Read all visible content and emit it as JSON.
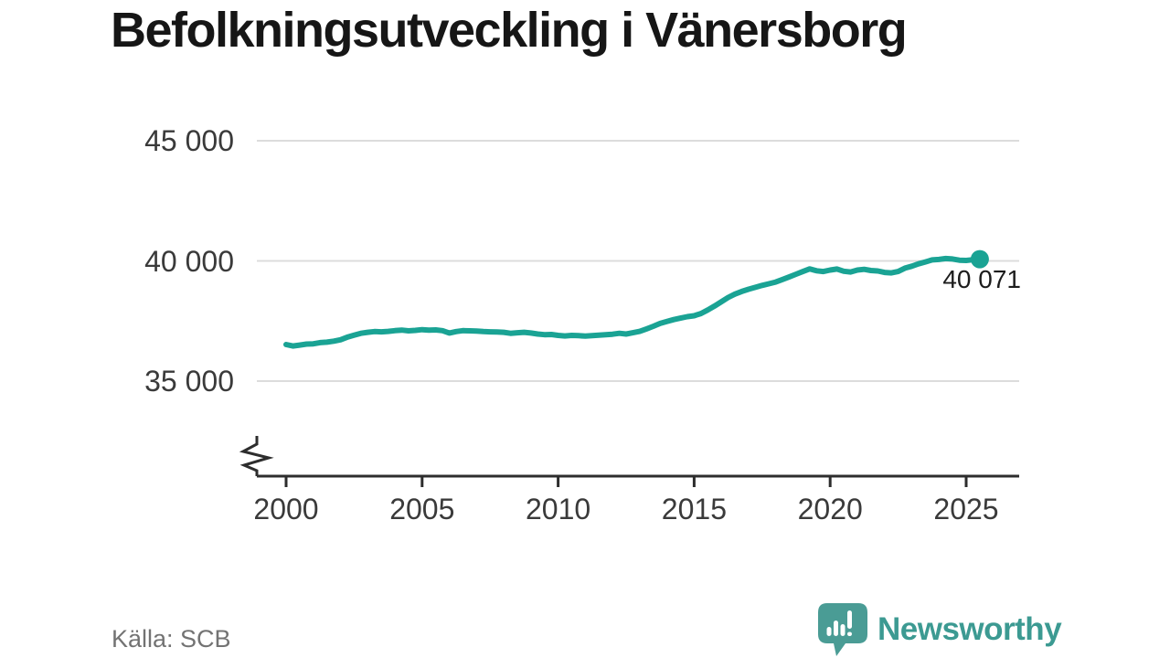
{
  "title": "Befolkningsutveckling i Vänersborg",
  "source": "Källa: SCB",
  "branding": {
    "name": "Newsworthy",
    "icon": "speech-bubble-bar-chart-exclamation"
  },
  "colors": {
    "line": "#1aa394",
    "end_dot": "#1aa394",
    "grid": "#dcdcdc",
    "axis": "#2d2d2d",
    "title_text": "#161616",
    "tick_text": "#3a3a3a",
    "value_text": "#1c1c1c",
    "source_text": "#737373",
    "logo_icon": "#4a9c95",
    "logo_text": "#3c9a92"
  },
  "chart_data": {
    "type": "line",
    "title": "Befolkningsutveckling i Vänersborg",
    "xlabel": "",
    "ylabel": "",
    "grid": "horizontal",
    "legend": "none",
    "axis_break": true,
    "x_range": [
      2000,
      2025.5
    ],
    "y_display_range": [
      33500,
      45500
    ],
    "y_ticks": [
      {
        "value": 45000,
        "label": "45 000"
      },
      {
        "value": 40000,
        "label": "40 000"
      },
      {
        "value": 35000,
        "label": "35 000"
      }
    ],
    "x_ticks": [
      {
        "value": 2000,
        "label": "2000"
      },
      {
        "value": 2005,
        "label": "2005"
      },
      {
        "value": 2010,
        "label": "2010"
      },
      {
        "value": 2015,
        "label": "2015"
      },
      {
        "value": 2020,
        "label": "2020"
      },
      {
        "value": 2025,
        "label": "2025"
      }
    ],
    "annotation": {
      "x": 2025.5,
      "value": 40071,
      "label": "40 071"
    },
    "points": [
      [
        2000.0,
        36520
      ],
      [
        2000.25,
        36460
      ],
      [
        2000.5,
        36500
      ],
      [
        2000.75,
        36540
      ],
      [
        2001.0,
        36550
      ],
      [
        2001.25,
        36600
      ],
      [
        2001.5,
        36620
      ],
      [
        2001.75,
        36660
      ],
      [
        2002.0,
        36720
      ],
      [
        2002.25,
        36830
      ],
      [
        2002.5,
        36910
      ],
      [
        2002.75,
        36990
      ],
      [
        2003.0,
        37030
      ],
      [
        2003.25,
        37060
      ],
      [
        2003.5,
        37050
      ],
      [
        2003.75,
        37070
      ],
      [
        2004.0,
        37100
      ],
      [
        2004.25,
        37120
      ],
      [
        2004.5,
        37090
      ],
      [
        2004.75,
        37110
      ],
      [
        2005.0,
        37140
      ],
      [
        2005.25,
        37120
      ],
      [
        2005.5,
        37130
      ],
      [
        2005.75,
        37100
      ],
      [
        2006.0,
        37000
      ],
      [
        2006.25,
        37060
      ],
      [
        2006.5,
        37100
      ],
      [
        2006.75,
        37090
      ],
      [
        2007.0,
        37080
      ],
      [
        2007.25,
        37060
      ],
      [
        2007.5,
        37050
      ],
      [
        2007.75,
        37040
      ],
      [
        2008.0,
        37030
      ],
      [
        2008.25,
        36990
      ],
      [
        2008.5,
        37010
      ],
      [
        2008.75,
        37030
      ],
      [
        2009.0,
        37000
      ],
      [
        2009.25,
        36960
      ],
      [
        2009.5,
        36930
      ],
      [
        2009.75,
        36940
      ],
      [
        2010.0,
        36900
      ],
      [
        2010.25,
        36880
      ],
      [
        2010.5,
        36900
      ],
      [
        2010.75,
        36890
      ],
      [
        2011.0,
        36870
      ],
      [
        2011.25,
        36890
      ],
      [
        2011.5,
        36910
      ],
      [
        2011.75,
        36930
      ],
      [
        2012.0,
        36950
      ],
      [
        2012.25,
        36990
      ],
      [
        2012.5,
        36960
      ],
      [
        2012.75,
        37010
      ],
      [
        2013.0,
        37070
      ],
      [
        2013.25,
        37170
      ],
      [
        2013.5,
        37280
      ],
      [
        2013.75,
        37400
      ],
      [
        2014.0,
        37480
      ],
      [
        2014.25,
        37560
      ],
      [
        2014.5,
        37620
      ],
      [
        2014.75,
        37680
      ],
      [
        2015.0,
        37720
      ],
      [
        2015.25,
        37810
      ],
      [
        2015.5,
        37960
      ],
      [
        2015.75,
        38120
      ],
      [
        2016.0,
        38300
      ],
      [
        2016.25,
        38480
      ],
      [
        2016.5,
        38620
      ],
      [
        2016.75,
        38730
      ],
      [
        2017.0,
        38820
      ],
      [
        2017.25,
        38900
      ],
      [
        2017.5,
        38980
      ],
      [
        2017.75,
        39050
      ],
      [
        2018.0,
        39120
      ],
      [
        2018.25,
        39230
      ],
      [
        2018.5,
        39340
      ],
      [
        2018.75,
        39450
      ],
      [
        2019.0,
        39560
      ],
      [
        2019.25,
        39670
      ],
      [
        2019.5,
        39590
      ],
      [
        2019.75,
        39560
      ],
      [
        2020.0,
        39620
      ],
      [
        2020.25,
        39660
      ],
      [
        2020.5,
        39570
      ],
      [
        2020.75,
        39540
      ],
      [
        2021.0,
        39620
      ],
      [
        2021.25,
        39650
      ],
      [
        2021.5,
        39600
      ],
      [
        2021.75,
        39580
      ],
      [
        2022.0,
        39520
      ],
      [
        2022.25,
        39500
      ],
      [
        2022.5,
        39560
      ],
      [
        2022.75,
        39700
      ],
      [
        2023.0,
        39780
      ],
      [
        2023.25,
        39880
      ],
      [
        2023.5,
        39960
      ],
      [
        2023.75,
        40040
      ],
      [
        2024.0,
        40060
      ],
      [
        2024.25,
        40100
      ],
      [
        2024.5,
        40080
      ],
      [
        2024.75,
        40030
      ],
      [
        2025.0,
        40020
      ],
      [
        2025.25,
        40050
      ],
      [
        2025.5,
        40071
      ]
    ]
  }
}
